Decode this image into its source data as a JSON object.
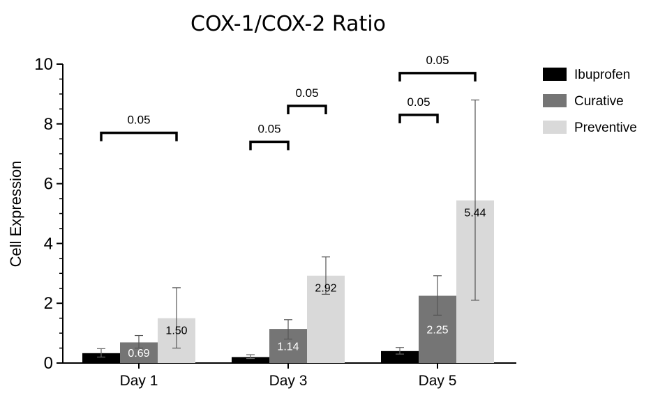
{
  "chart_data": {
    "type": "bar",
    "title": "COX-1/COX-2 Ratio",
    "xlabel": "",
    "ylabel": "Cell Expression",
    "ylim": [
      0,
      10
    ],
    "yticks": [
      0,
      2,
      4,
      6,
      8,
      10
    ],
    "yticks_display": [
      "0",
      "2",
      "4",
      "6",
      "8",
      "10"
    ],
    "minor_ticks": true,
    "grid": false,
    "legend_position": "top-right",
    "categories": [
      "Day 1",
      "Day 3",
      "Day 5"
    ],
    "series": [
      {
        "name": "Ibuprofen",
        "color": "#000000",
        "values": [
          0.33,
          0.2,
          0.4
        ],
        "error_low": [
          0.2,
          0.15,
          0.3
        ],
        "error_high": [
          0.48,
          0.28,
          0.52
        ],
        "labels": [
          "",
          "",
          ""
        ],
        "label_color": "#ffffff"
      },
      {
        "name": "Curative",
        "color": "#757575",
        "values": [
          0.69,
          1.14,
          2.25
        ],
        "error_low": [
          0.5,
          0.8,
          1.6
        ],
        "error_high": [
          0.92,
          1.45,
          2.92
        ],
        "labels": [
          "0.69",
          "1.14",
          "2.25"
        ],
        "label_color": "#ffffff"
      },
      {
        "name": "Preventive",
        "color": "#d9d9d9",
        "values": [
          1.5,
          2.92,
          5.44
        ],
        "error_low": [
          0.5,
          2.3,
          2.1
        ],
        "error_high": [
          2.52,
          3.55,
          8.8
        ],
        "labels": [
          "1.50",
          "2.92",
          "5.44"
        ],
        "label_color": "#000000"
      }
    ],
    "significance": [
      {
        "category": 0,
        "from_series": 0,
        "to_series": 2,
        "y": 7.7,
        "label": "0.05"
      },
      {
        "category": 1,
        "from_series": 0,
        "to_series": 1,
        "y": 7.4,
        "label": "0.05"
      },
      {
        "category": 1,
        "from_series": 1,
        "to_series": 2,
        "y": 8.6,
        "label": "0.05"
      },
      {
        "category": 2,
        "from_series": 0,
        "to_series": 1,
        "y": 8.3,
        "label": "0.05"
      },
      {
        "category": 2,
        "from_series": 0,
        "to_series": 2,
        "y": 9.7,
        "label": "0.05"
      }
    ]
  }
}
